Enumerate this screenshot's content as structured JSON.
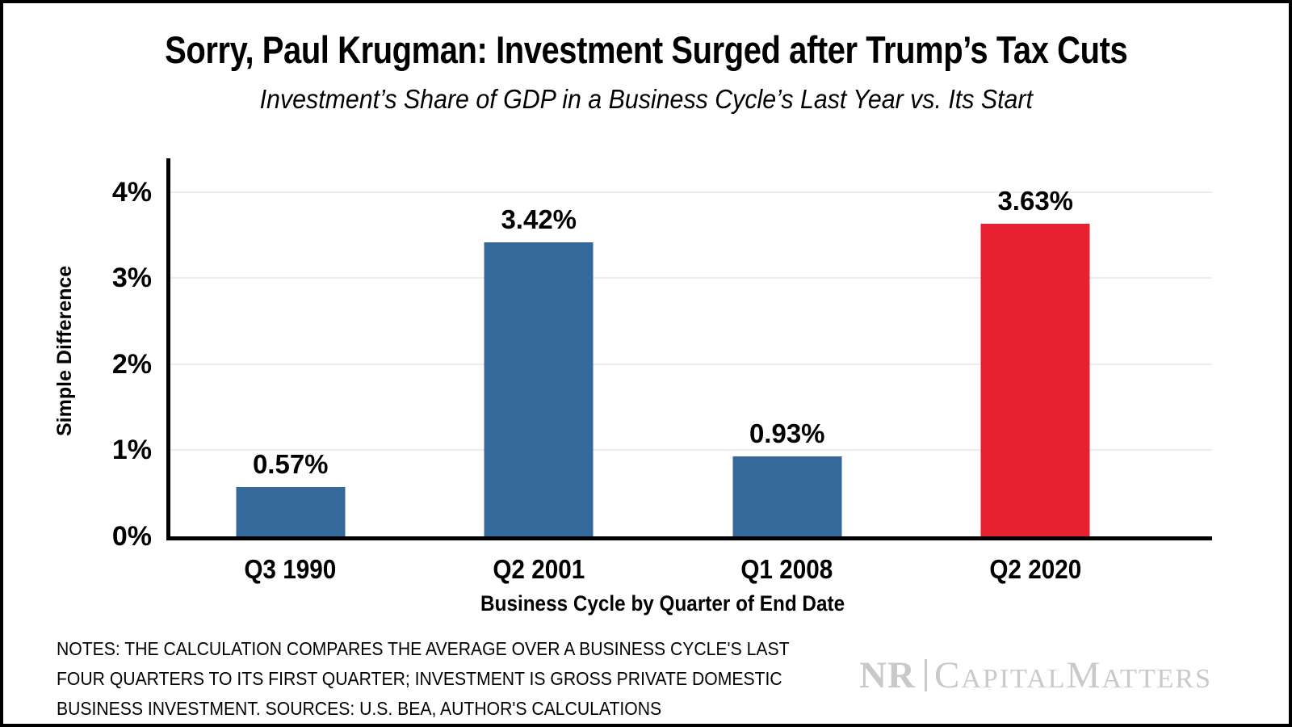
{
  "chart_data": {
    "type": "bar",
    "title": "Sorry, Paul Krugman: Investment Surged after Trump’s Tax Cuts",
    "subtitle": "Investment’s Share of GDP in a Business Cycle’s Last Year vs. Its Start",
    "xlabel": "Business Cycle by Quarter of End Date",
    "ylabel": "Simple Difference",
    "categories": [
      "Q3 1990",
      "Q2 2001",
      "Q1 2008",
      "Q2 2020"
    ],
    "values": [
      0.57,
      3.42,
      0.93,
      3.63
    ],
    "value_labels": [
      "0.57%",
      "3.42%",
      "0.93%",
      "3.63%"
    ],
    "bar_colors": [
      "#35689B",
      "#35689B",
      "#35689B",
      "#E82130"
    ],
    "ylim": [
      0,
      4.4
    ],
    "ytick_values": [
      0,
      1,
      2,
      3,
      4
    ],
    "ytick_labels": [
      "0%",
      "1%",
      "2%",
      "3%",
      "4%"
    ],
    "grid": true,
    "legend": false,
    "colors": {
      "axis": "#000000",
      "grid": "#EDEDEE",
      "text": "#000000"
    }
  },
  "notes": {
    "lines": [
      "NOTES: THE CALCULATION COMPARES THE AVERAGE OVER A BUSINESS CYCLE'S LAST",
      "FOUR QUARTERS TO ITS FIRST QUARTER; INVESTMENT IS GROSS PRIVATE DOMESTIC",
      "BUSINESS INVESTMENT. SOURCES: U.S. BEA, AUTHOR'S CALCULATIONS"
    ]
  },
  "logo": {
    "nr": "NR",
    "capital_initial": "C",
    "capital_rest": "APITAL",
    "matters_initial": "M",
    "matters_rest": "ATTERS",
    "color": "#C9C9C9"
  }
}
